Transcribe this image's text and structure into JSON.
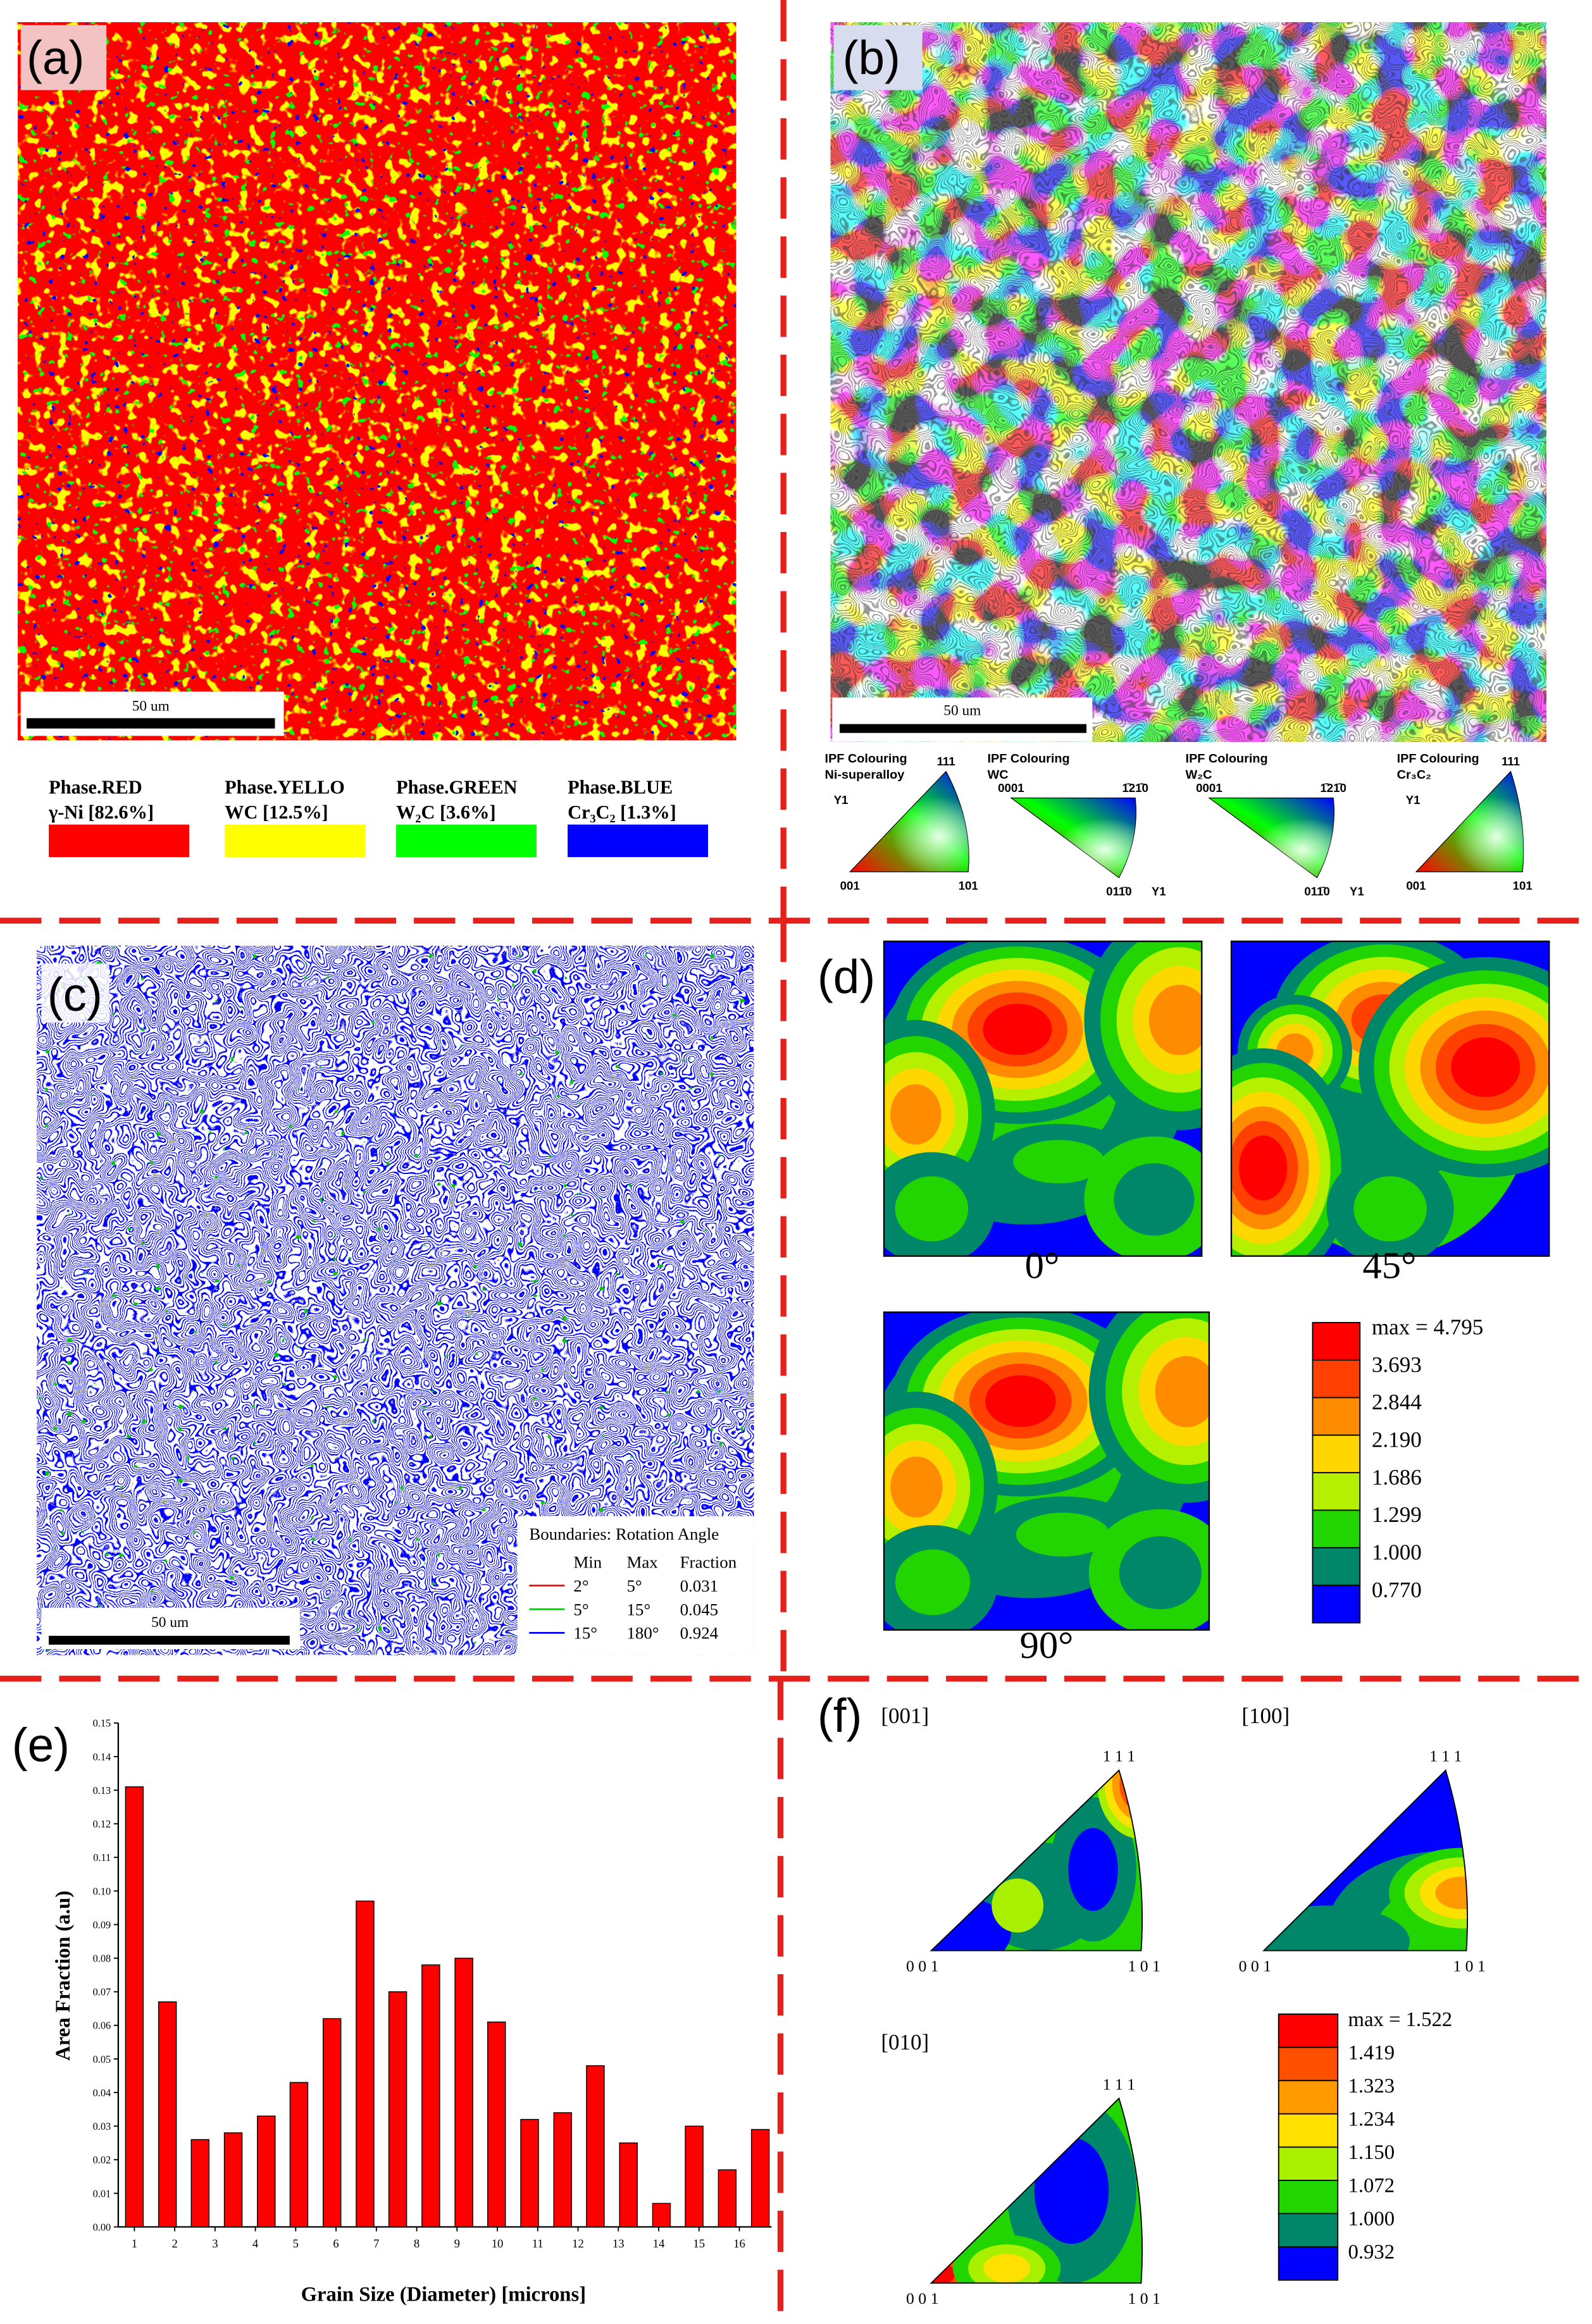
{
  "panels": {
    "a": {
      "label": "(a)",
      "scale_bar": "50 um",
      "phases": [
        {
          "name": "Phase.RED",
          "label": "γ-Ni [82.6%]",
          "color": "#ff0000"
        },
        {
          "name": "Phase.YELLO",
          "label": "WC [12.5%]",
          "color": "#ffff00"
        },
        {
          "name": "Phase.GREEN",
          "label": "W₂C [3.6%]",
          "color": "#00ff00"
        },
        {
          "name": "Phase.BLUE",
          "label": "Cr₃C₂ [1.3%]",
          "color": "#0000ff"
        }
      ]
    },
    "b": {
      "label": "(b)",
      "scale_bar": "50 um",
      "ipf": [
        {
          "title": "IPF Colouring",
          "phase": "Ni-superalloy",
          "axis": "Y1",
          "corners": [
            "111",
            "001",
            "101"
          ]
        },
        {
          "title": "IPF Colouring",
          "phase": "WC",
          "axis": "Y1",
          "corners": [
            "0001",
            "1̄21̄0",
            "011̄0"
          ]
        },
        {
          "title": "IPF Colouring",
          "phase": "W₂C",
          "axis": "Y1",
          "corners": [
            "0001",
            "1̄21̄0",
            "011̄0"
          ]
        },
        {
          "title": "IPF Colouring",
          "phase": "Cr₃C₂",
          "axis": "Y1",
          "corners": [
            "111",
            "001",
            "101"
          ]
        }
      ]
    },
    "c": {
      "label": "(c)",
      "scale_bar": "50 um",
      "boundaries": {
        "title": "Boundaries: Rotation Angle",
        "columns": [
          "Min",
          "Max",
          "Fraction"
        ],
        "rows": [
          {
            "min": "2°",
            "max": "5°",
            "fraction": "0.031",
            "color": "#ff0000"
          },
          {
            "min": "5°",
            "max": "15°",
            "fraction": "0.045",
            "color": "#00cc00"
          },
          {
            "min": "15°",
            "max": "180°",
            "fraction": "0.924",
            "color": "#0000ff"
          }
        ]
      }
    },
    "d": {
      "label": "(d)",
      "angles": [
        "0°",
        "45°",
        "90°"
      ],
      "colorbar": [
        {
          "label": "max = 4.795",
          "color": "#ff0000"
        },
        {
          "label": "3.693",
          "color": "#ff4000"
        },
        {
          "label": "2.844",
          "color": "#ff8c00"
        },
        {
          "label": "2.190",
          "color": "#ffd700"
        },
        {
          "label": "1.686",
          "color": "#b4f000"
        },
        {
          "label": "1.299",
          "color": "#22d400"
        },
        {
          "label": "1.000",
          "color": "#00876a"
        },
        {
          "label": "0.770",
          "color": "#0000ff"
        }
      ]
    },
    "f": {
      "label": "(f)",
      "figures": [
        {
          "direction": "[001]",
          "corners": [
            "1 1 1",
            "0 0 1",
            "1 0 1"
          ]
        },
        {
          "direction": "[100]",
          "corners": [
            "1 1 1",
            "0 0 1",
            "1 0 1"
          ]
        },
        {
          "direction": "[010]",
          "corners": [
            "1 1 1",
            "0 0 1",
            "1 0 1"
          ]
        }
      ],
      "colorbar": [
        {
          "label": "max = 1.522",
          "color": "#ff0000"
        },
        {
          "label": "1.419",
          "color": "#ff5000"
        },
        {
          "label": "1.323",
          "color": "#ff9a00"
        },
        {
          "label": "1.234",
          "color": "#ffe000"
        },
        {
          "label": "1.150",
          "color": "#a8f000"
        },
        {
          "label": "1.072",
          "color": "#22d400"
        },
        {
          "label": "1.000",
          "color": "#00876a"
        },
        {
          "label": "0.932",
          "color": "#0000ff"
        }
      ]
    }
  },
  "chart_data": {
    "type": "bar",
    "label": "(e)",
    "xlabel": "Grain Size (Diameter) [microns]",
    "ylabel": "Area Fraction (a.u)",
    "color": "#ff0000",
    "x": [
      1,
      1.82,
      2.63,
      3.45,
      4.27,
      5.08,
      5.9,
      6.72,
      7.53,
      8.35,
      9.17,
      9.98,
      10.8,
      11.62,
      12.43,
      13.25,
      14.07,
      14.88,
      15.7,
      16.52
    ],
    "values": [
      0.131,
      0.067,
      0.026,
      0.028,
      0.033,
      0.043,
      0.062,
      0.097,
      0.07,
      0.078,
      0.08,
      0.061,
      0.032,
      0.034,
      0.048,
      0.025,
      0.007,
      0.03,
      0.017,
      0.029
    ],
    "xlim": [
      0.6,
      16.8
    ],
    "xticks": [
      1,
      2,
      3,
      4,
      5,
      6,
      7,
      8,
      9,
      10,
      11,
      12,
      13,
      14,
      15,
      16
    ],
    "ylim": [
      0,
      0.15
    ],
    "yticks": [
      {
        "value": 0,
        "label": "0.00"
      },
      {
        "value": 0.01,
        "label": "0.01"
      },
      {
        "value": 0.02,
        "label": "0.02"
      },
      {
        "value": 0.03,
        "label": "0.03"
      },
      {
        "value": 0.04,
        "label": "0.04"
      },
      {
        "value": 0.05,
        "label": "0.05"
      },
      {
        "value": 0.06,
        "label": "0.06"
      },
      {
        "value": 0.07,
        "label": "0.07"
      },
      {
        "value": 0.08,
        "label": "0.08"
      },
      {
        "value": 0.09,
        "label": "0.09"
      },
      {
        "value": 0.1,
        "label": "0.10"
      },
      {
        "value": 0.11,
        "label": "0.11"
      },
      {
        "value": 0.12,
        "label": "0.12"
      },
      {
        "value": 0.13,
        "label": "0.13"
      },
      {
        "value": 0.14,
        "label": "0.14"
      },
      {
        "value": 0.15,
        "label": "0.15"
      }
    ]
  }
}
